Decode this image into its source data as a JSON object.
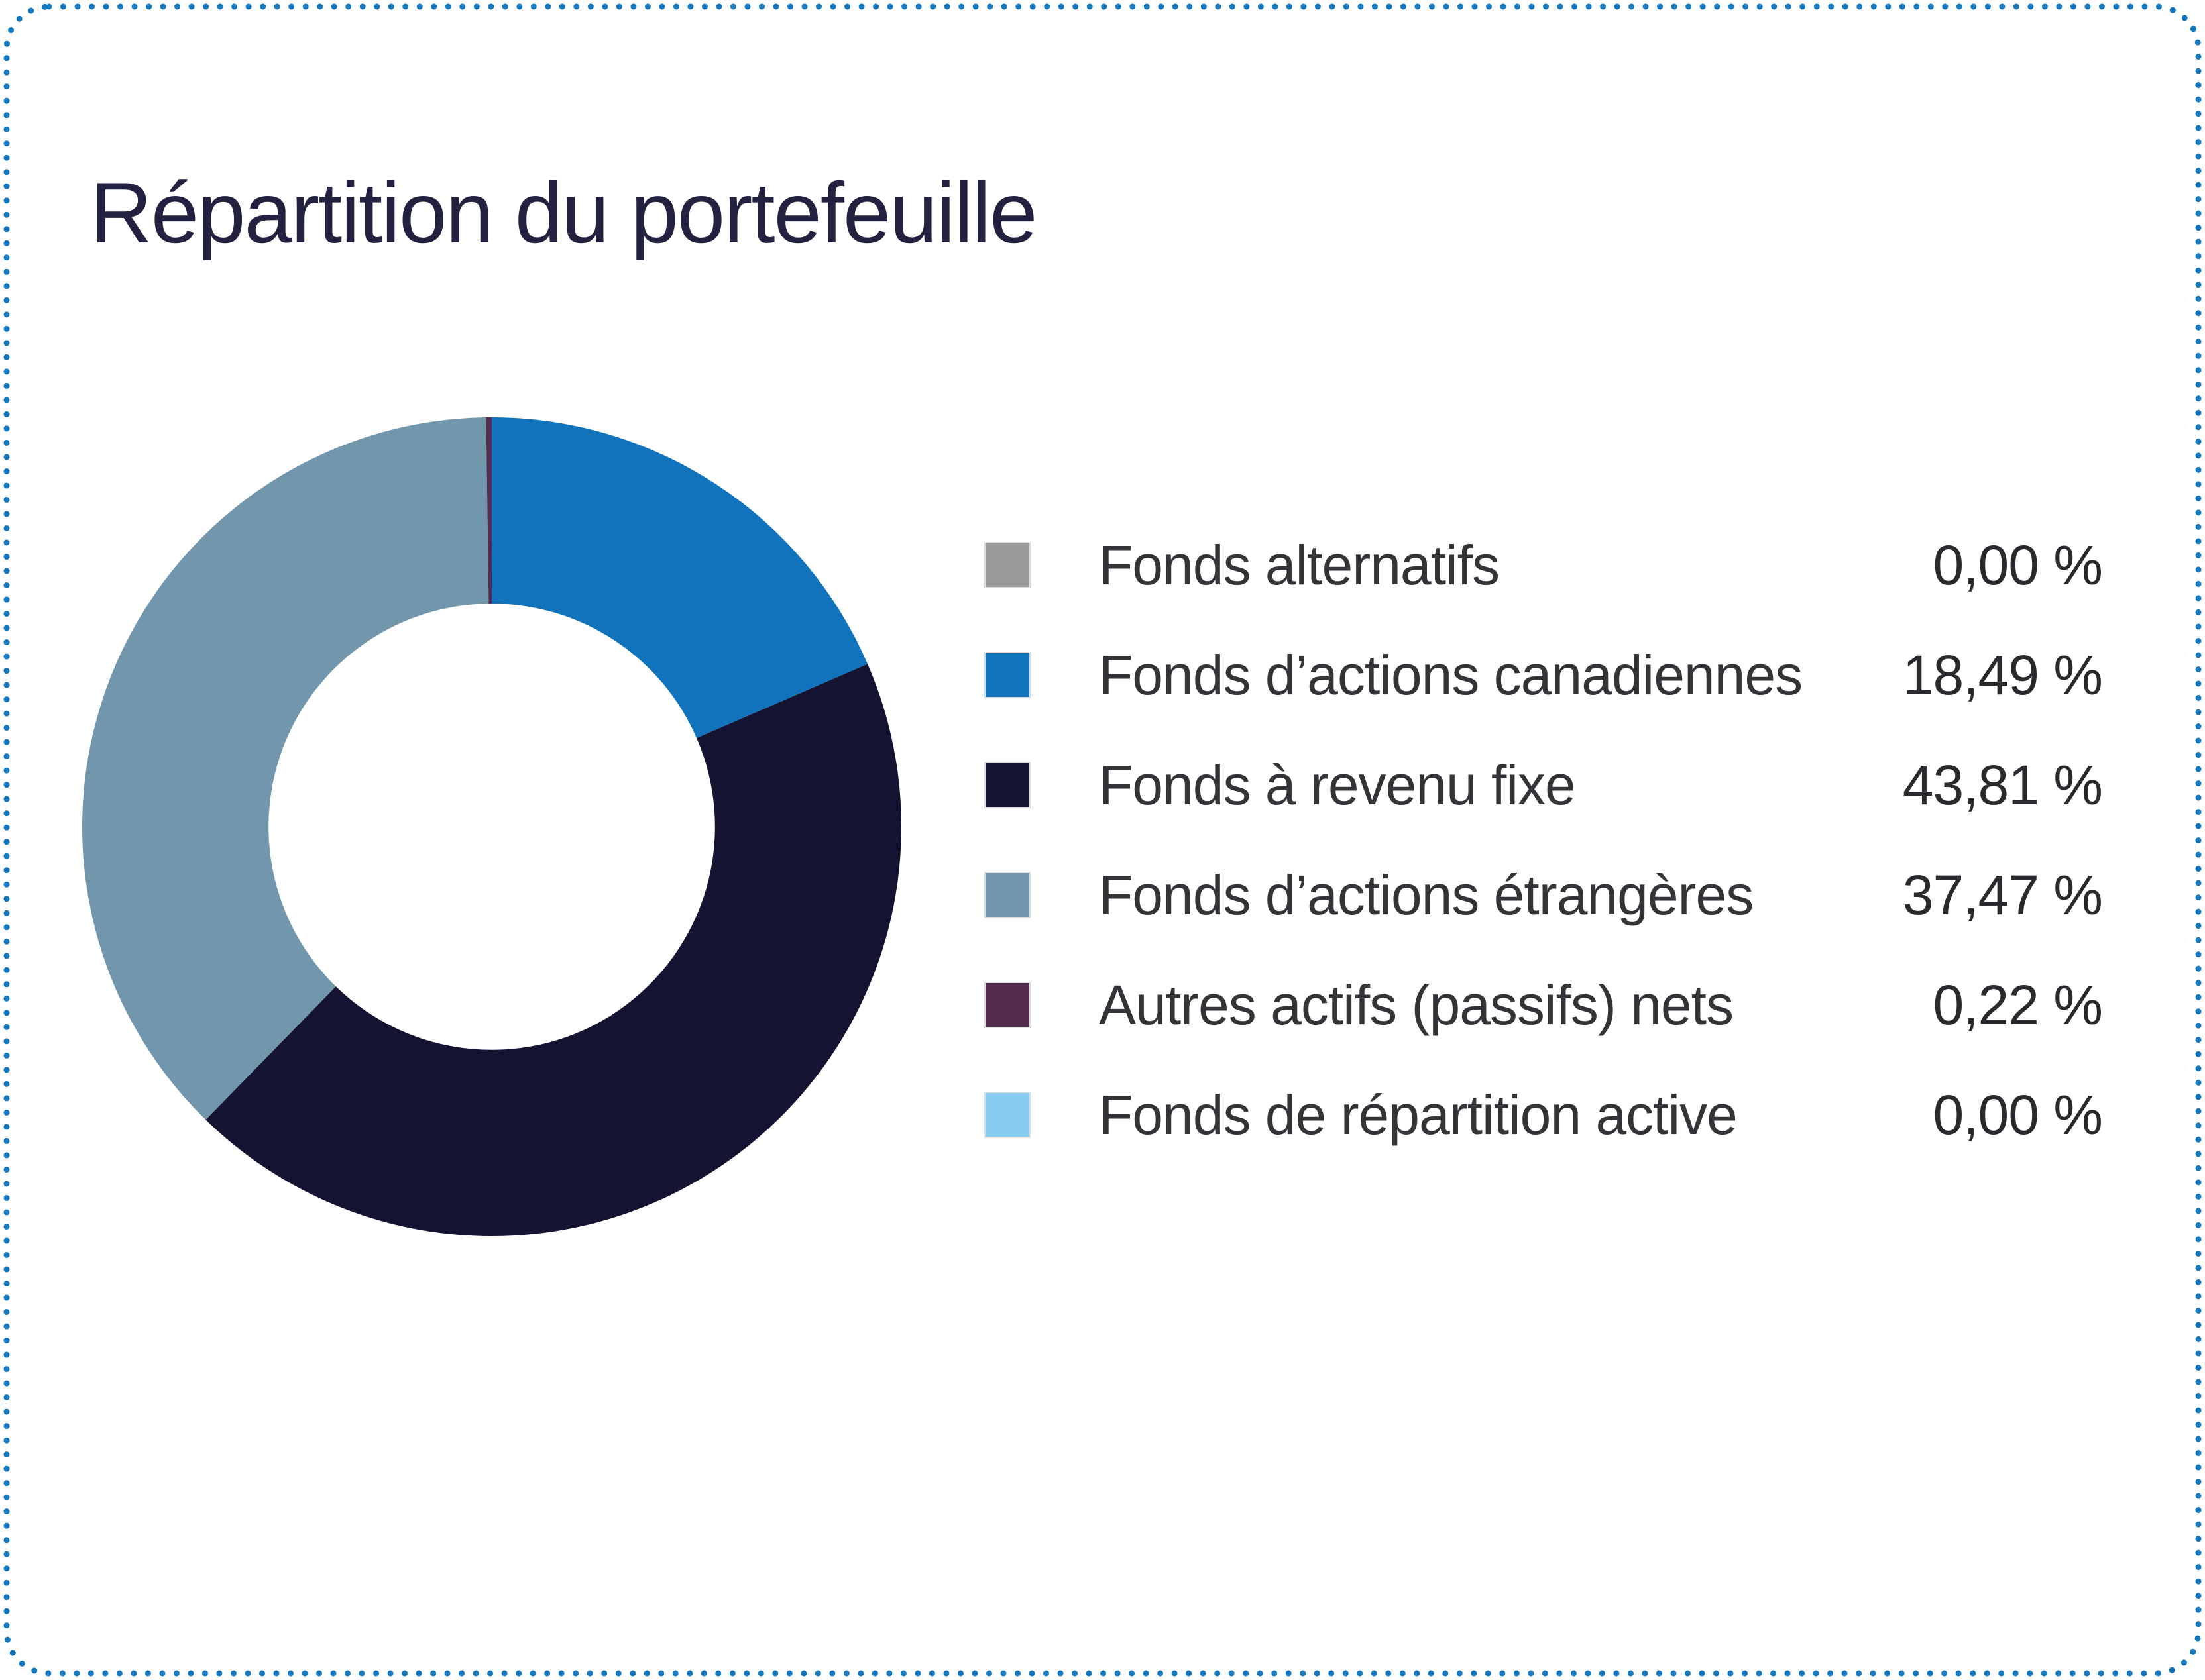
{
  "card": {
    "title": "Répartition du portefeuille",
    "border_color": "#1577be",
    "background_color": "#ffffff",
    "title_color": "#222240"
  },
  "chart_data": {
    "type": "pie",
    "donut": true,
    "title": "Répartition du portefeuille",
    "inner_radius_ratio": 0.545,
    "start_angle_deg": 0,
    "direction": "clockwise",
    "legend_position": "right",
    "value_unit": "%",
    "series": [
      {
        "name": "Fonds alternatifs",
        "value": 0.0,
        "color": "#98999b"
      },
      {
        "name": "Fonds d’actions canadiennes",
        "value": 18.49,
        "color": "#1173bc"
      },
      {
        "name": "Fonds à revenu fixe",
        "value": 43.81,
        "color": "#141432"
      },
      {
        "name": "Fonds d’actions étrangères",
        "value": 37.47,
        "color": "#7297ac"
      },
      {
        "name": "Autres actifs (passifs) nets",
        "value": 0.22,
        "color": "#532c4b"
      },
      {
        "name": "Fonds de répartition active",
        "value": 0.0,
        "color": "#85cbf2"
      }
    ]
  },
  "legend": {
    "items": [
      {
        "label": "Fonds alternatifs",
        "value_label": "0,00 %",
        "color": "#98999b"
      },
      {
        "label": "Fonds d’actions canadiennes",
        "value_label": "18,49 %",
        "color": "#1173bc"
      },
      {
        "label": "Fonds à revenu fixe",
        "value_label": "43,81 %",
        "color": "#141432"
      },
      {
        "label": "Fonds d’actions étrangères",
        "value_label": "37,47 %",
        "color": "#7297ac"
      },
      {
        "label": "Autres actifs (passifs) nets",
        "value_label": "0,22 %",
        "color": "#532c4b"
      },
      {
        "label": "Fonds de répartition active",
        "value_label": "0,00 %",
        "color": "#85cbf2"
      }
    ]
  }
}
